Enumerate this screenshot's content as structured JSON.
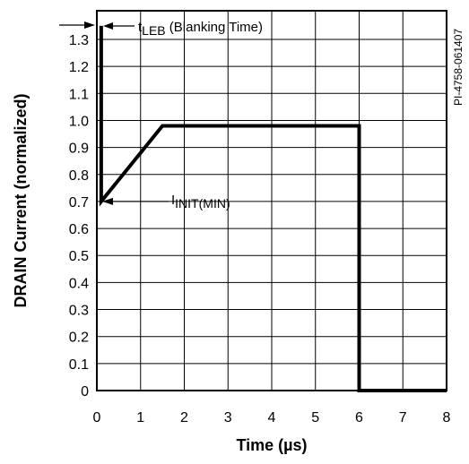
{
  "chart_data": {
    "type": "line",
    "xlabel": "Time (µs)",
    "ylabel": "DRAIN Current (normalized)",
    "xlim": [
      0,
      8
    ],
    "ylim": [
      0,
      1.35
    ],
    "grid": true,
    "x_ticks": [
      "0",
      "1",
      "2",
      "3",
      "4",
      "5",
      "6",
      "7",
      "8"
    ],
    "y_ticks": [
      "0",
      "0.1",
      "0.2",
      "0.3",
      "0.4",
      "0.5",
      "0.6",
      "0.7",
      "0.8",
      "0.9",
      "1.0",
      "1.1",
      "1.2",
      "1.3"
    ],
    "series": [
      {
        "x": [
          0.1,
          0.1,
          1.5,
          6.0,
          6.0,
          8.0
        ],
        "y": [
          1.35,
          0.7,
          0.98,
          0.98,
          0.0,
          0.0
        ]
      }
    ],
    "annotations": {
      "leb": {
        "main": "t",
        "sub": "LEB",
        "rest": " (Blanking Time)"
      },
      "init": {
        "main": "I",
        "sub": "INIT(MIN)"
      }
    },
    "figure_id": "PI-4758-061407"
  }
}
